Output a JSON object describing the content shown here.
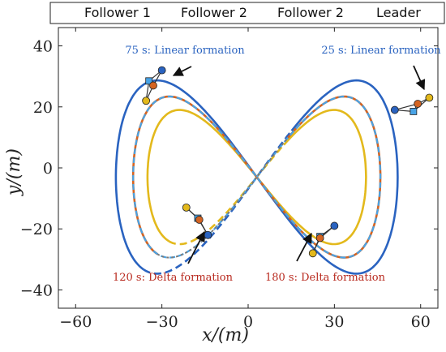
{
  "colors": {
    "follower1": "#2a63c0",
    "follower2_red": "#d46422",
    "follower2_yellow": "#e3b91c",
    "leader": "#48a3e6",
    "annot_blue": "#2a63c0",
    "annot_red": "#b8291e",
    "gray_link": "#7a7a7a"
  },
  "chart_data": {
    "type": "line",
    "xlabel": "x/(m)",
    "ylabel": "y/(m)",
    "xlim": [
      -66,
      66
    ],
    "ylim": [
      -46,
      46
    ],
    "xticks": [
      -60,
      -30,
      0,
      30,
      60
    ],
    "yticks": [
      -40,
      -20,
      0,
      20,
      40
    ],
    "xtick_labels": [
      "−60",
      "−30",
      "0",
      "30",
      "60"
    ],
    "ytick_labels": [
      "−40",
      "−20",
      "0",
      "20",
      "40"
    ],
    "legend": {
      "position": "top",
      "entries": [
        {
          "label": "Follower 1",
          "style": "solid",
          "color_key": "follower1"
        },
        {
          "label": "Follower 2",
          "style": "solid",
          "color_key": "follower2_red"
        },
        {
          "label": "Follower 2",
          "style": "solid",
          "color_key": "follower2_yellow"
        },
        {
          "label": "Leader",
          "style": "dashed",
          "color_key": "leader"
        }
      ]
    },
    "series": [
      {
        "name": "Follower 1",
        "ax": 49,
        "ay": 36,
        "phase_shift": 0.12
      },
      {
        "name": "Follower 2",
        "ax": 43,
        "ay": 30,
        "phase_shift": 0.0
      },
      {
        "name": "Follower 2",
        "ax": 38,
        "ay": 25,
        "phase_shift": -0.12
      },
      {
        "name": "Leader",
        "ax": 43,
        "ay": 30,
        "phase_shift": 0.0
      }
    ],
    "annotations": [
      {
        "text": "75 s: Linear formation",
        "color_key": "annot_blue",
        "x": -30,
        "y": 33
      },
      {
        "text": "25 s: Linear formation",
        "color_key": "annot_blue",
        "x": 55,
        "y": 23
      },
      {
        "text": "120 s: Delta formation",
        "color_key": "annot_red",
        "x": -20,
        "y": -41
      },
      {
        "text": "180 s: Delta formation",
        "color_key": "annot_red",
        "x": 40,
        "y": -41
      }
    ],
    "formations": [
      {
        "label": "25 s",
        "type": "linear",
        "leader": [
          57.5,
          18.5
        ],
        "f1": [
          51,
          19
        ],
        "f2_red": [
          59,
          21
        ],
        "f2_yel": [
          63,
          23
        ]
      },
      {
        "label": "75 s",
        "type": "linear",
        "leader": [
          -34.5,
          28.5
        ],
        "f1": [
          -30,
          32
        ],
        "f2_red": [
          -33,
          27
        ],
        "f2_yel": [
          -35.5,
          22
        ]
      },
      {
        "label": "120 s",
        "type": "delta",
        "leader": [
          -17.5,
          -16.5
        ],
        "f1": [
          -14,
          -22
        ],
        "f2_red": [
          -17,
          -17
        ],
        "f2_yel": [
          -21.5,
          -13
        ]
      },
      {
        "label": "180 s",
        "type": "delta",
        "leader": [
          25,
          -22.5
        ],
        "f1": [
          30,
          -19
        ],
        "f2_red": [
          25,
          -23
        ],
        "f2_yel": [
          22.5,
          -28
        ]
      }
    ]
  }
}
